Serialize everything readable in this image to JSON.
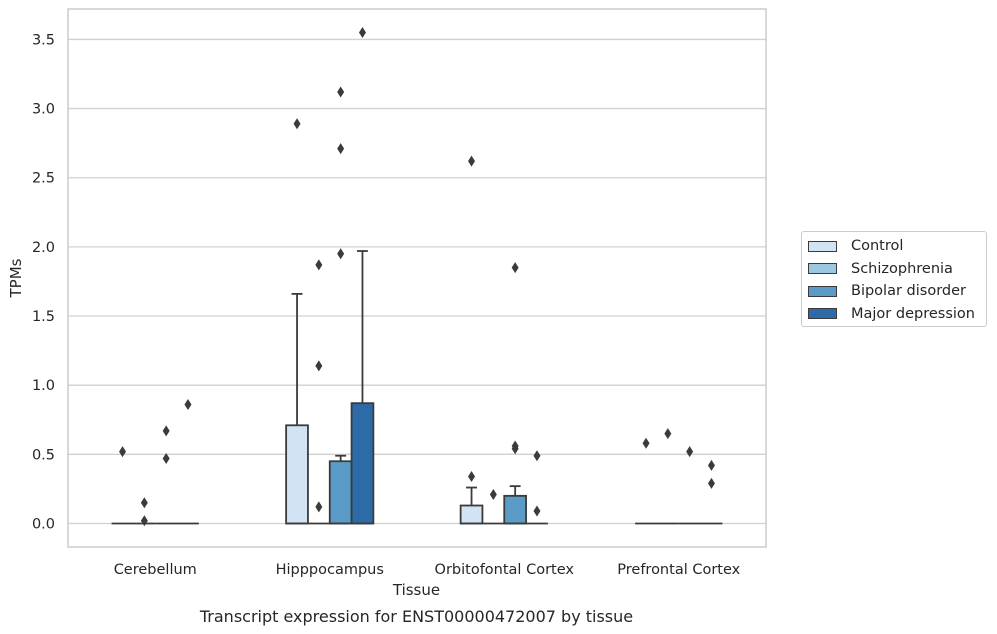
{
  "chart_data": {
    "type": "box",
    "title": "Transcript expression for ENST00000472007 by tissue",
    "xlabel": "Tissue",
    "ylabel": "TPMs",
    "ylim": [
      -0.17,
      3.72
    ],
    "yticks": [
      "0.0",
      "0.5",
      "1.0",
      "1.5",
      "2.0",
      "2.5",
      "3.0",
      "3.5"
    ],
    "categories": [
      "Cerebellum",
      "Hipppocampus",
      "Orbitofontal Cortex",
      "Prefrontal Cortex"
    ],
    "grid": "horizontal",
    "legend_position": "right",
    "series": [
      {
        "name": "Control",
        "color": "#d2e3f3",
        "boxes": [
          {
            "q1": 0,
            "median": 0,
            "q3": 0,
            "whisker_low": 0,
            "whisker_high": 0,
            "outliers": [
              0.52
            ]
          },
          {
            "q1": 0,
            "median": 0,
            "q3": 0.71,
            "whisker_low": 0,
            "whisker_high": 1.66,
            "outliers": [
              2.89
            ]
          },
          {
            "q1": 0,
            "median": 0,
            "q3": 0.13,
            "whisker_low": 0,
            "whisker_high": 0.26,
            "outliers": [
              0.34,
              2.62
            ]
          },
          {
            "q1": 0,
            "median": 0,
            "q3": 0,
            "whisker_low": 0,
            "whisker_high": 0,
            "outliers": [
              0.58
            ]
          }
        ]
      },
      {
        "name": "Schizophrenia",
        "color": "#9ac8e0",
        "boxes": [
          {
            "q1": 0,
            "median": 0,
            "q3": 0,
            "whisker_low": 0,
            "whisker_high": 0,
            "outliers": [
              0.02,
              0.15
            ]
          },
          {
            "q1": 0,
            "median": 0,
            "q3": 0,
            "whisker_low": 0,
            "whisker_high": 0,
            "outliers": [
              0.12,
              1.14,
              1.87
            ]
          },
          {
            "q1": 0,
            "median": 0,
            "q3": 0,
            "whisker_low": 0,
            "whisker_high": 0,
            "outliers": [
              0.21
            ]
          },
          {
            "q1": 0,
            "median": 0,
            "q3": 0,
            "whisker_low": 0,
            "whisker_high": 0,
            "outliers": [
              0.65
            ]
          }
        ]
      },
      {
        "name": "Bipolar disorder",
        "color": "#5a9bc8",
        "boxes": [
          {
            "q1": 0,
            "median": 0,
            "q3": 0,
            "whisker_low": 0,
            "whisker_high": 0,
            "outliers": [
              0.47,
              0.67
            ]
          },
          {
            "q1": 0,
            "median": 0,
            "q3": 0.45,
            "whisker_low": 0,
            "whisker_high": 0.49,
            "outliers": [
              1.95,
              2.71,
              3.12
            ]
          },
          {
            "q1": 0,
            "median": 0,
            "q3": 0.2,
            "whisker_low": 0,
            "whisker_high": 0.27,
            "outliers": [
              0.54,
              0.56,
              1.85
            ]
          },
          {
            "q1": 0,
            "median": 0,
            "q3": 0,
            "whisker_low": 0,
            "whisker_high": 0,
            "outliers": [
              0.52
            ]
          }
        ]
      },
      {
        "name": "Major depression",
        "color": "#2c6aa8",
        "boxes": [
          {
            "q1": 0,
            "median": 0,
            "q3": 0,
            "whisker_low": 0,
            "whisker_high": 0,
            "outliers": [
              0.86
            ]
          },
          {
            "q1": 0,
            "median": 0,
            "q3": 0.87,
            "whisker_low": 0,
            "whisker_high": 1.97,
            "outliers": [
              3.55
            ]
          },
          {
            "q1": 0,
            "median": 0,
            "q3": 0,
            "whisker_low": 0,
            "whisker_high": 0,
            "outliers": [
              0.09,
              0.49
            ]
          },
          {
            "q1": 0,
            "median": 0,
            "q3": 0,
            "whisker_low": 0,
            "whisker_high": 0,
            "outliers": [
              0.29,
              0.42
            ]
          }
        ]
      }
    ]
  }
}
